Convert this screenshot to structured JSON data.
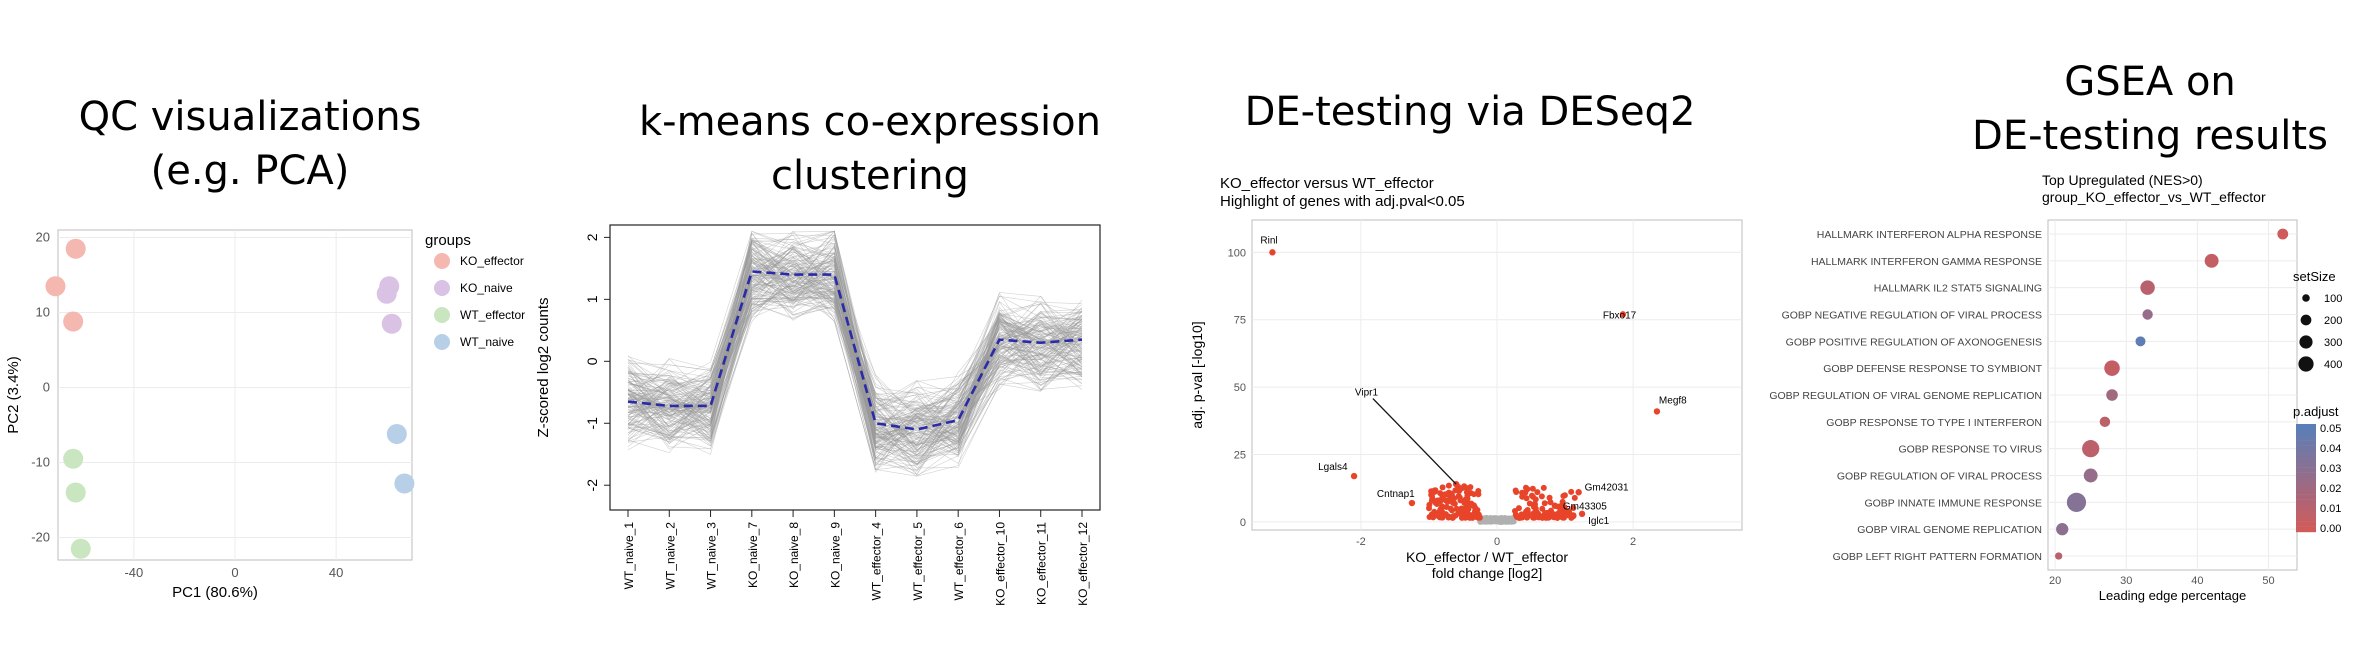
{
  "titles": {
    "pca": "QC visualizations\n(e.g. PCA)",
    "kmeans": "k-means co-expression\nclustering",
    "de": "DE-testing via DESeq2",
    "gsea": "GSEA on\nDE-testing results"
  },
  "chart_data": [
    {
      "type": "scatter",
      "xlabel": "PC1  (80.6%)",
      "ylabel": "PC2  (3.4%)",
      "xlim": [
        -70,
        70
      ],
      "ylim": [
        -23,
        21
      ],
      "xticks": [
        -40,
        0,
        40
      ],
      "yticks": [
        -20,
        -10,
        0,
        10,
        20
      ],
      "grid": true,
      "legend": {
        "title": "groups",
        "placement": "right"
      },
      "series": [
        {
          "name": "KO_effector",
          "color": "#f4b8b0",
          "points": [
            [
              -63,
              18.5
            ],
            [
              -71,
              13.5
            ],
            [
              -64,
              8.8
            ]
          ]
        },
        {
          "name": "KO_naive",
          "color": "#d9c2e3",
          "points": [
            [
              61,
              13.5
            ],
            [
              60,
              12.5
            ],
            [
              62,
              8.5
            ]
          ]
        },
        {
          "name": "WT_effector",
          "color": "#c9e6c0",
          "points": [
            [
              -64,
              -9.5
            ],
            [
              -63,
              -14
            ],
            [
              -61,
              -21.5
            ]
          ]
        },
        {
          "name": "WT_naive",
          "color": "#b8cfe8",
          "points": [
            [
              64,
              -6.2
            ],
            [
              67,
              -12.8
            ]
          ]
        }
      ]
    },
    {
      "type": "line",
      "ylabel": "Z-scored log2 counts",
      "ylim": [
        -2.4,
        2.2
      ],
      "yticks": [
        -2,
        -1,
        0,
        1,
        2
      ],
      "categories": [
        "WT_naive_1",
        "WT_naive_2",
        "WT_naive_3",
        "KO_naive_7",
        "KO_naive_8",
        "KO_naive_9",
        "WT_effector_4",
        "WT_effector_5",
        "WT_effector_6",
        "KO_effector_10",
        "KO_effector_11",
        "KO_effector_12"
      ],
      "series": [
        {
          "name": "cluster mean",
          "color": "#2b2ba8",
          "values": [
            -0.65,
            -0.72,
            -0.72,
            1.45,
            1.4,
            1.4,
            -1.0,
            -1.1,
            -0.95,
            0.35,
            0.3,
            0.35
          ]
        }
      ],
      "background_lines": {
        "color": "#9a9a9a",
        "count": 150,
        "spread": 0.55
      }
    },
    {
      "type": "scatter",
      "title": "KO_effector versus WT_effector",
      "subtitle": "Highlight of genes with adj.pval<0.05",
      "xlabel": "KO_effector / WT_effector\nfold change [log2]",
      "ylabel": "adj. p-val [-log10]",
      "xlim": [
        -3.6,
        3.6
      ],
      "ylim": [
        -3,
        112
      ],
      "xticks": [
        -2,
        0,
        2
      ],
      "yticks": [
        0,
        25,
        50,
        75,
        100
      ],
      "grid": true,
      "highlight_color": "#e8442a",
      "labeled_points": [
        {
          "label": "Rinl",
          "x": -3.3,
          "y": 100
        },
        {
          "label": "Fbxo17",
          "x": 1.85,
          "y": 77
        },
        {
          "label": "Megf8",
          "x": 2.35,
          "y": 41
        },
        {
          "label": "Vipr1",
          "x": -0.6,
          "y": 14
        },
        {
          "label": "Lgals4",
          "x": -2.1,
          "y": 17
        },
        {
          "label": "Cntnap1",
          "x": -1.25,
          "y": 7
        },
        {
          "label": "Gm42031",
          "x": 1.2,
          "y": 11
        },
        {
          "label": "Gm43305",
          "x": 0.85,
          "y": 6
        },
        {
          "label": "Iglc1",
          "x": 1.25,
          "y": 3
        }
      ],
      "vipr1_label_pos": {
        "x": -2.0,
        "y": 48
      }
    },
    {
      "type": "scatter",
      "title": "Top Upregulated (NES>0)",
      "subtitle": "group_KO_effector_vs_WT_effector",
      "xlabel": "Leading edge percentage",
      "xlim": [
        19,
        54
      ],
      "xticks": [
        20,
        30,
        40,
        50
      ],
      "grid": true,
      "size_legend": {
        "title": "setSize",
        "values": [
          100,
          200,
          300,
          400
        ]
      },
      "color_legend": {
        "title": "p.adjust",
        "values": [
          "0.05",
          "0.04",
          "0.03",
          "0.02",
          "0.01",
          "0.00"
        ],
        "low_color": "#cf5b5b",
        "high_color": "#5a7fb8"
      },
      "categories": [
        "HALLMARK INTERFERON ALPHA RESPONSE",
        "HALLMARK INTERFERON GAMMA RESPONSE",
        "HALLMARK IL2 STAT5 SIGNALING",
        "GOBP NEGATIVE REGULATION OF VIRAL PROCESS",
        "GOBP POSITIVE REGULATION OF AXONOGENESIS",
        "GOBP DEFENSE RESPONSE TO SYMBIONT",
        "GOBP REGULATION OF VIRAL GENOME REPLICATION",
        "GOBP RESPONSE TO TYPE I INTERFERON",
        "GOBP RESPONSE TO VIRUS",
        "GOBP REGULATION OF VIRAL PROCESS",
        "GOBP INNATE IMMUNE RESPONSE",
        "GOBP VIRAL GENOME REPLICATION",
        "GOBP LEFT RIGHT PATTERN FORMATION"
      ],
      "points": [
        {
          "x": 52,
          "size": 110,
          "p": 0.0
        },
        {
          "x": 42,
          "size": 200,
          "p": 0.005
        },
        {
          "x": 33,
          "size": 220,
          "p": 0.01
        },
        {
          "x": 33,
          "size": 100,
          "p": 0.025
        },
        {
          "x": 32,
          "size": 90,
          "p": 0.048
        },
        {
          "x": 28,
          "size": 260,
          "p": 0.005
        },
        {
          "x": 28,
          "size": 130,
          "p": 0.02
        },
        {
          "x": 27,
          "size": 100,
          "p": 0.008
        },
        {
          "x": 25,
          "size": 330,
          "p": 0.008
        },
        {
          "x": 25,
          "size": 200,
          "p": 0.025
        },
        {
          "x": 23,
          "size": 420,
          "p": 0.032
        },
        {
          "x": 21,
          "size": 150,
          "p": 0.028
        },
        {
          "x": 20.5,
          "size": 40,
          "p": 0.01
        }
      ]
    }
  ]
}
